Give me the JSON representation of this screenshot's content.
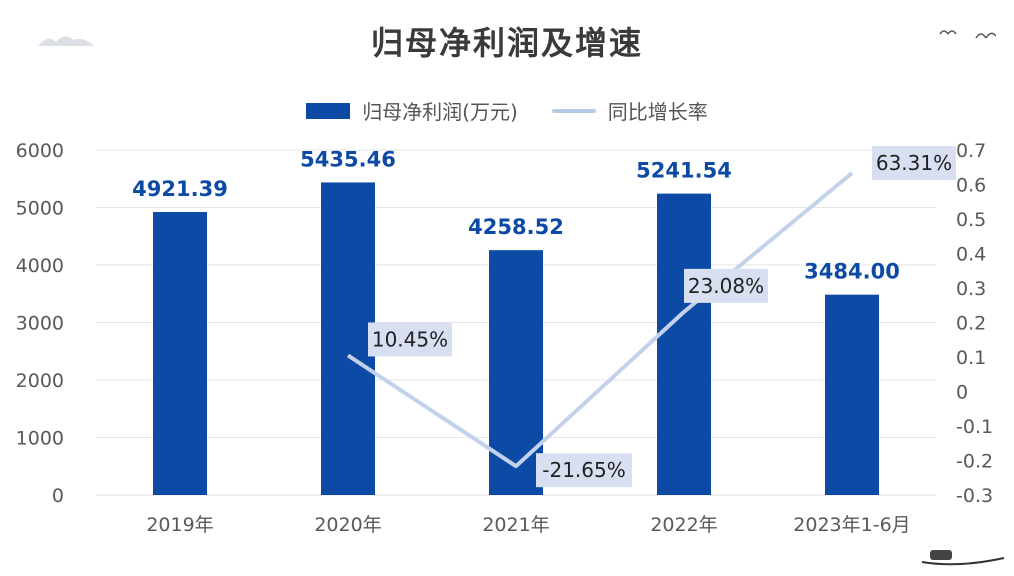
{
  "chart_data": {
    "type": "bar",
    "title": "归母净利润及增速",
    "categories": [
      "2019年",
      "2020年",
      "2021年",
      "2022年",
      "2023年1-6月"
    ],
    "series": [
      {
        "name": "归母净利润(万元)",
        "type": "bar",
        "axis": "left",
        "values": [
          4921.39,
          5435.46,
          4258.52,
          5241.54,
          3484.0
        ],
        "labels": [
          "4921.39",
          "5435.46",
          "4258.52",
          "5241.54",
          "3484.00"
        ]
      },
      {
        "name": "同比增长率",
        "type": "line",
        "axis": "right",
        "points": [
          {
            "category": "2020年",
            "value": 0.1045,
            "label": "10.45%"
          },
          {
            "category": "2021年",
            "value": -0.2165,
            "label": "-21.65%"
          },
          {
            "category": "2022年",
            "value": 0.2308,
            "label": "23.08%"
          },
          {
            "category": "2023年1-6月",
            "value": 0.6331,
            "label": "63.31%"
          }
        ]
      }
    ],
    "y_left": {
      "min": 0,
      "max": 6000,
      "ticks": [
        "0",
        "1000",
        "2000",
        "3000",
        "4000",
        "5000",
        "6000"
      ]
    },
    "y_right": {
      "min": -0.3,
      "max": 0.7,
      "ticks": [
        "-0.3",
        "-0.2",
        "-0.1",
        "0",
        "0.1",
        "0.2",
        "0.3",
        "0.4",
        "0.5",
        "0.6",
        "0.7"
      ]
    },
    "grid": true,
    "legend_position": "top",
    "colors": {
      "bar": "#0c4aa6",
      "bar_label": "#0c4aa6",
      "line": "#c3d2ea",
      "pct_box": "#d7dff0",
      "grid": "#e6e6e6",
      "axis_text": "#595959"
    }
  }
}
